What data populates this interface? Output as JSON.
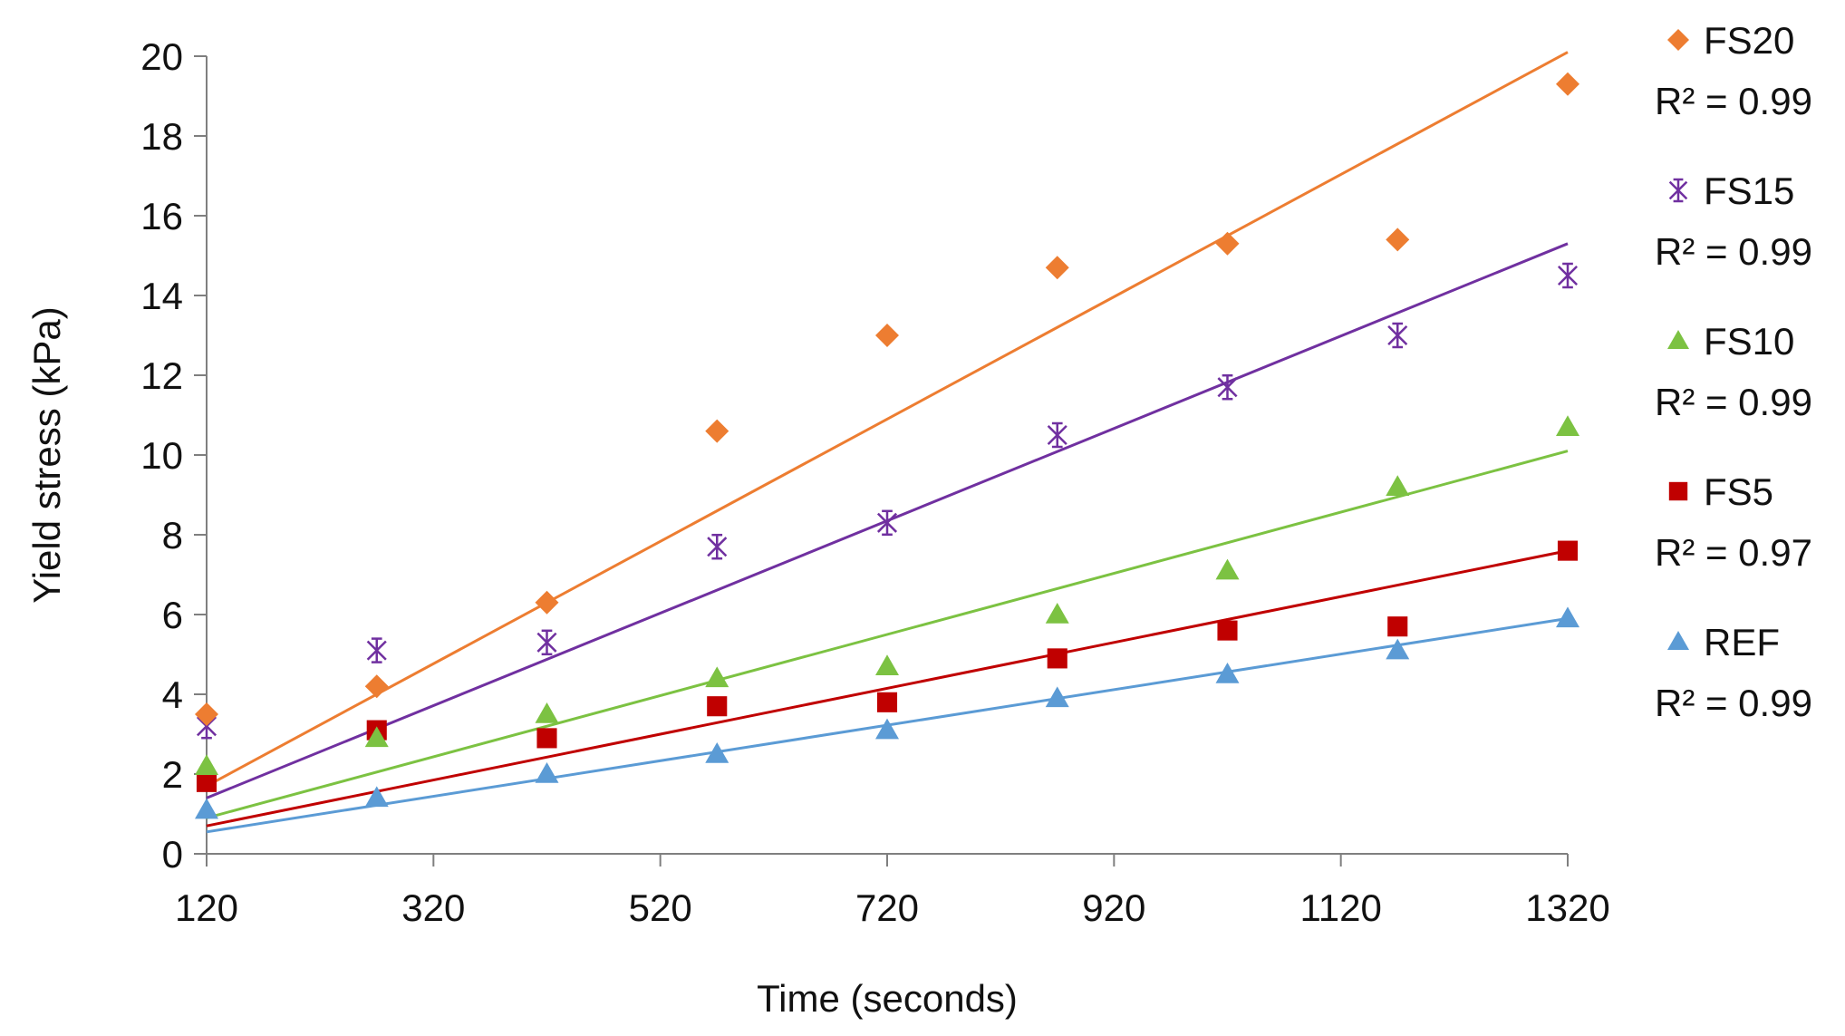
{
  "chart_data": {
    "type": "scatter",
    "title": "",
    "xlabel": "Time (seconds)",
    "ylabel": "Yield stress (kPa)",
    "xlim": [
      120,
      1320
    ],
    "ylim": [
      0,
      20
    ],
    "xticks": [
      120,
      320,
      520,
      720,
      920,
      1120,
      1320
    ],
    "yticks": [
      0,
      2,
      4,
      6,
      8,
      10,
      12,
      14,
      16,
      18,
      20
    ],
    "x": [
      120,
      270,
      420,
      570,
      720,
      870,
      1020,
      1170,
      1320
    ],
    "grid": false,
    "legend_position": "right",
    "series": [
      {
        "name": "FS20",
        "r2_label": "R² = 0.99",
        "marker": "diamond",
        "color": "#ED7D31",
        "values": [
          3.5,
          4.2,
          6.3,
          10.6,
          13.0,
          14.7,
          15.3,
          15.4,
          19.3
        ],
        "trendline": [
          1.7,
          20.1
        ]
      },
      {
        "name": "FS15",
        "r2_label": "R² = 0.99",
        "marker": "asterisk",
        "color": "#7030A0",
        "values": [
          3.2,
          5.1,
          5.3,
          7.7,
          8.3,
          10.5,
          11.7,
          13.0,
          14.5
        ],
        "trendline": [
          1.4,
          15.3
        ]
      },
      {
        "name": "FS10",
        "r2_label": "R² = 0.99",
        "marker": "triangle",
        "color": "#7CC242",
        "values": [
          2.2,
          2.9,
          3.5,
          4.4,
          4.7,
          6.0,
          7.1,
          9.2,
          10.7
        ],
        "trendline": [
          0.9,
          10.1
        ]
      },
      {
        "name": "FS5",
        "r2_label": "R² = 0.97",
        "marker": "square",
        "color": "#C00000",
        "values": [
          1.8,
          3.1,
          2.9,
          3.7,
          3.8,
          4.9,
          5.6,
          5.7,
          7.6
        ],
        "trendline": [
          0.7,
          7.6
        ]
      },
      {
        "name": "REF",
        "r2_label": "R² = 0.99",
        "marker": "triangle",
        "color": "#5B9BD5",
        "values": [
          1.1,
          1.4,
          2.0,
          2.5,
          3.1,
          3.9,
          4.5,
          5.1,
          5.9
        ],
        "trendline": [
          0.55,
          5.9
        ]
      }
    ]
  }
}
